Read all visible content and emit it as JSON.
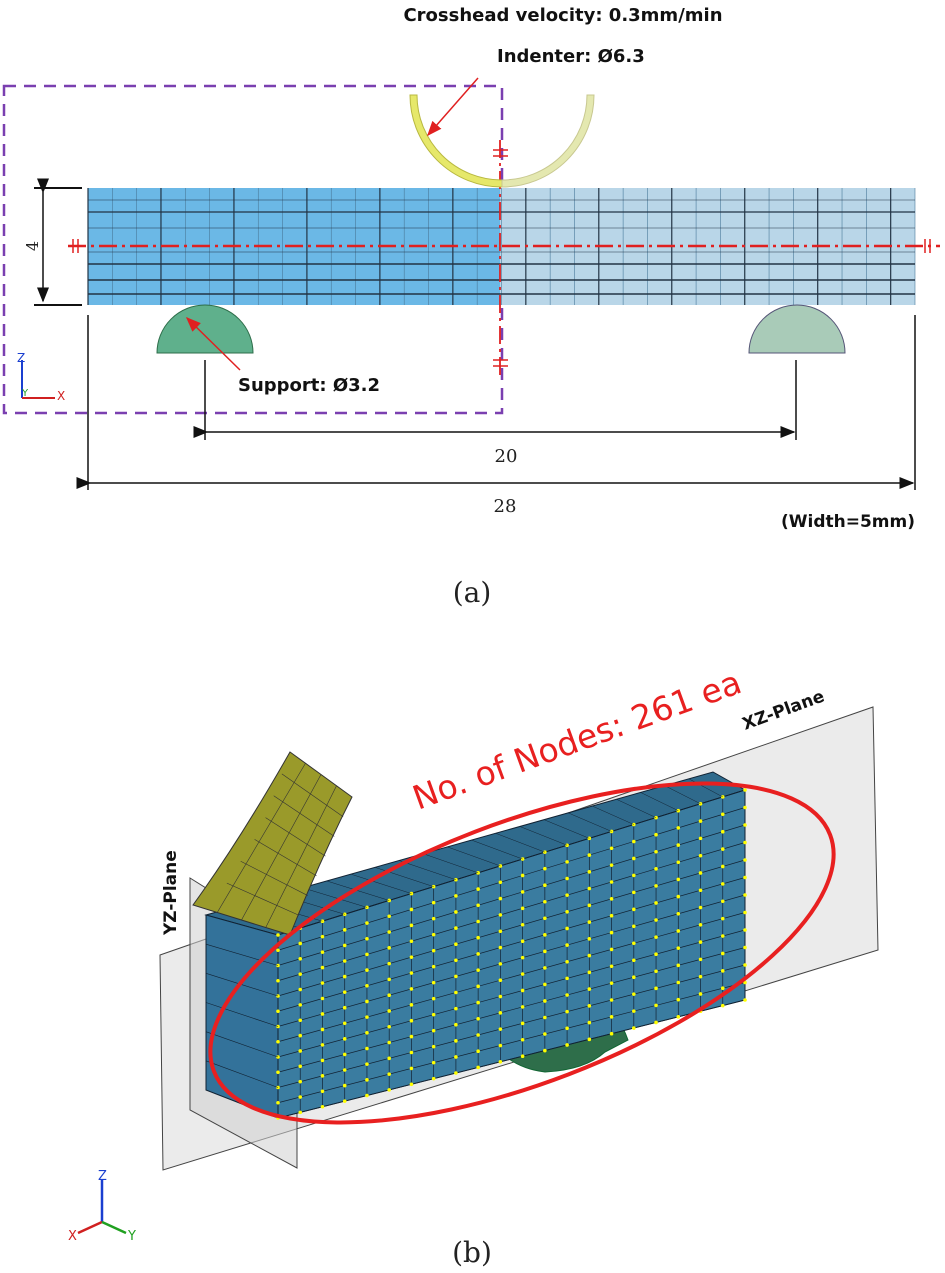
{
  "panel_a": {
    "caption": "(a)",
    "crosshead_label": "Crosshead velocity: 0.3mm/min",
    "indenter_label": "Indenter: Ø6.3",
    "support_label": "Support: Ø3.2",
    "thickness_dim": "4",
    "span_dim": "20",
    "length_dim": "28",
    "width_note": "(Width=5mm)",
    "axes": {
      "z": "Z",
      "y": "Y",
      "x": "X"
    }
  },
  "panel_b": {
    "caption": "(b)",
    "nodes_label": "No. of Nodes: 261 ea",
    "xz_plane_label": "XZ-Plane",
    "yz_plane_label": "YZ-Plane",
    "axes": {
      "z": "Z",
      "x": "X",
      "y": "Y"
    }
  },
  "colors": {
    "beam_light": "#6bb8e6",
    "beam_faded": "#b9d6e8",
    "indenter": "#e6e86a",
    "support": "#5fb08c",
    "beam_3d": "#3a7ca0",
    "indenter_3d": "#9a9a2a",
    "support_3d": "#2e6e4a",
    "symmetry_line": "#e02020",
    "highlight": "#e82020",
    "crop_box": "#7a3fb0",
    "node": "#ffff00"
  }
}
